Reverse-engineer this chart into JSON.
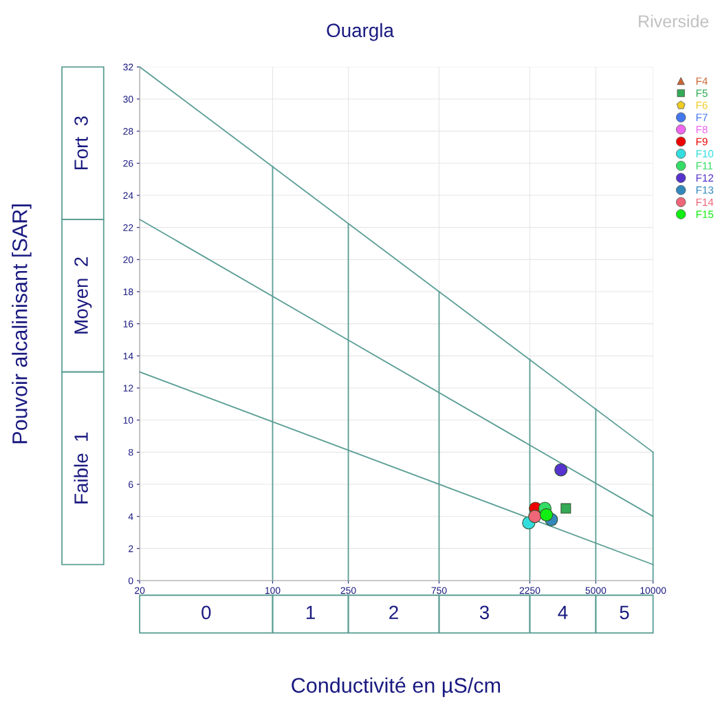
{
  "chart_data": {
    "type": "scatter",
    "title": "Ouargla",
    "subtitle": "Riverside",
    "xlabel": "Conductivité en µS/cm",
    "ylabel": "Pouvoir alcalinisant [SAR]",
    "log": "x",
    "xlim": [
      20,
      10000
    ],
    "ylim": [
      0,
      32
    ],
    "xticks": [
      20,
      100,
      250,
      750,
      2250,
      5000,
      10000
    ],
    "yticks": [
      0,
      2,
      4,
      6,
      8,
      10,
      12,
      14,
      16,
      18,
      20,
      22,
      24,
      26,
      28,
      30,
      32
    ],
    "grid": true,
    "legend": "top right",
    "annotations": [
      "Fort  3",
      "Moyen  2",
      "Faible  1",
      "0",
      "1",
      "2",
      "3",
      "4",
      "5"
    ],
    "series": [
      {
        "type": "line",
        "color": "#5a9e94",
        "x": [
          20,
          10000
        ],
        "values": [
          32,
          8
        ]
      },
      {
        "type": "line",
        "color": "#5a9e94",
        "x": [
          20,
          10000
        ],
        "values": [
          22.5,
          4
        ]
      },
      {
        "type": "line",
        "color": "#5a9e94",
        "x": [
          20,
          10000
        ],
        "values": [
          13,
          1
        ]
      },
      {
        "type": "line",
        "color": "#5a9e94",
        "x": [
          100,
          100
        ],
        "values": [
          0,
          25.8
        ]
      },
      {
        "type": "line",
        "color": "#5a9e94",
        "x": [
          250,
          250
        ],
        "values": [
          0,
          22.2
        ]
      },
      {
        "type": "line",
        "color": "#5a9e94",
        "x": [
          750,
          750
        ],
        "values": [
          0,
          18
        ]
      },
      {
        "type": "line",
        "color": "#5a9e94",
        "x": [
          2250,
          2250
        ],
        "values": [
          0,
          13.8
        ]
      },
      {
        "type": "line",
        "color": "#5a9e94",
        "x": [
          5000,
          5000
        ],
        "values": [
          0,
          10.7
        ]
      },
      {
        "type": "line",
        "color": "#5a9e94",
        "x": [
          10000,
          10000
        ],
        "values": [
          0,
          8
        ]
      },
      {
        "name": "F4",
        "marker": "triangle",
        "color": "#cc6633",
        "x": [
          null
        ],
        "values": [
          null
        ]
      },
      {
        "name": "F5",
        "marker": "square",
        "color": "#33aa55",
        "x": [
          3480
        ],
        "values": [
          4.5
        ]
      },
      {
        "name": "F6",
        "marker": "pentagon",
        "color": "#eecc22",
        "x": [
          null
        ],
        "values": [
          null
        ]
      },
      {
        "name": "F7",
        "marker": "circle",
        "color": "#4477ee",
        "x": [
          null
        ],
        "values": [
          null
        ]
      },
      {
        "name": "F8",
        "marker": "circle",
        "color": "#ee66ee",
        "x": [
          null
        ],
        "values": [
          null
        ]
      },
      {
        "name": "F9",
        "marker": "circle",
        "color": "#ee0000",
        "x": [
          2410
        ],
        "values": [
          4.5
        ]
      },
      {
        "name": "F10",
        "marker": "circle",
        "color": "#33dddd",
        "x": [
          2220
        ],
        "values": [
          3.6
        ]
      },
      {
        "name": "F11",
        "marker": "circle",
        "color": "#33dd66",
        "x": [
          2700
        ],
        "values": [
          4.5
        ]
      },
      {
        "name": "F12",
        "marker": "circle",
        "color": "#5533cc",
        "x": [
          3280
        ],
        "values": [
          6.9
        ]
      },
      {
        "name": "F13",
        "marker": "circle",
        "color": "#3388bb",
        "x": [
          2920
        ],
        "values": [
          3.8
        ]
      },
      {
        "name": "F14",
        "marker": "circle",
        "color": "#ee6677",
        "x": [
          2390
        ],
        "values": [
          4.0
        ]
      },
      {
        "name": "F15",
        "marker": "circle",
        "color": "#11ee11",
        "x": [
          2750
        ],
        "values": [
          4.1
        ]
      }
    ]
  }
}
